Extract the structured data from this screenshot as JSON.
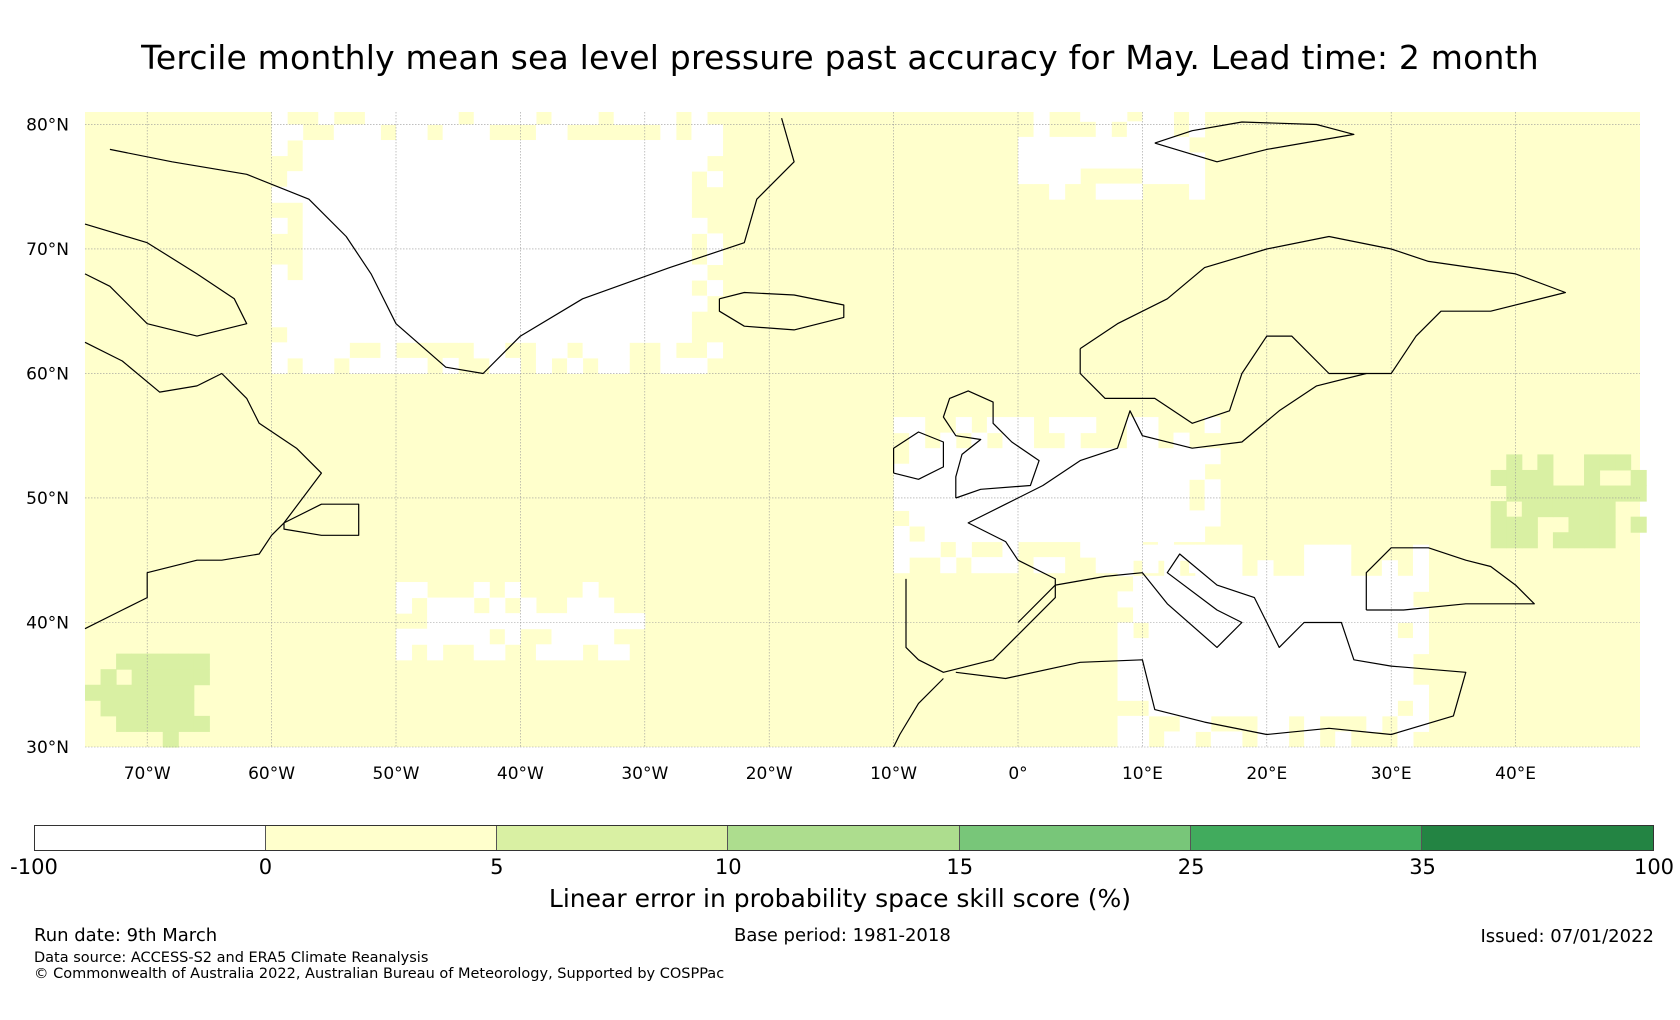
{
  "title": "Tercile monthly mean sea level pressure past accuracy for May. Lead time: 2 month",
  "map": {
    "lon_range": [
      -75,
      50
    ],
    "lat_range": [
      30,
      81
    ],
    "lat_labels": [
      "80°N",
      "70°N",
      "60°N",
      "50°N",
      "40°N",
      "30°N"
    ],
    "lat_values": [
      80,
      70,
      60,
      50,
      40,
      30
    ],
    "lon_labels": [
      "70°W",
      "60°W",
      "50°W",
      "40°W",
      "30°W",
      "20°W",
      "10°W",
      "0°",
      "10°E",
      "20°E",
      "30°E",
      "40°E"
    ],
    "lon_values": [
      -70,
      -60,
      -50,
      -40,
      -30,
      -20,
      -10,
      0,
      10,
      20,
      30,
      40
    ],
    "background_category": "0-5",
    "regions": [
      {
        "name": "greenland-interior",
        "category": "negative",
        "lon": [
          -60,
          -24
        ],
        "lat": [
          60,
          81
        ]
      },
      {
        "name": "north-sea-band",
        "category": "negative",
        "lon": [
          -10,
          16
        ],
        "lat": [
          44,
          56
        ]
      },
      {
        "name": "mediterranean",
        "category": "negative",
        "lon": [
          8,
          32
        ],
        "lat": [
          30,
          46
        ]
      },
      {
        "name": "mid-atlantic-patch",
        "category": "negative",
        "lon": [
          -50,
          -30
        ],
        "lat": [
          37,
          43
        ]
      },
      {
        "name": "svalbard-sea",
        "category": "negative",
        "lon": [
          0,
          15
        ],
        "lat": [
          74,
          81
        ]
      },
      {
        "name": "russia-green",
        "category": "5-10",
        "lon": [
          38,
          50
        ],
        "lat": [
          46,
          53
        ]
      },
      {
        "name": "canada-green",
        "category": "5-10",
        "lon": [
          -75,
          -65
        ],
        "lat": [
          30,
          37
        ]
      }
    ]
  },
  "colorbar": {
    "colors": [
      "#ffffff",
      "#ffffcc",
      "#d9f0a3",
      "#addd8e",
      "#78c679",
      "#41ab5d",
      "#238443"
    ],
    "ticks": [
      "-100",
      "0",
      "5",
      "10",
      "15",
      "25",
      "35",
      "100"
    ],
    "label": "Linear error in probability space skill score (%)"
  },
  "footer": {
    "run_date": "Run date: 9th March",
    "base_period": "Base period: 1981-2018",
    "issued": "Issued: 07/01/2022",
    "data_source": "Data source: ACCESS-S2 and ERA5 Climate Reanalysis",
    "copyright": "© Commonwealth of Australia 2022, Australian Bureau of Meteorology, Supported by COSPPac"
  }
}
